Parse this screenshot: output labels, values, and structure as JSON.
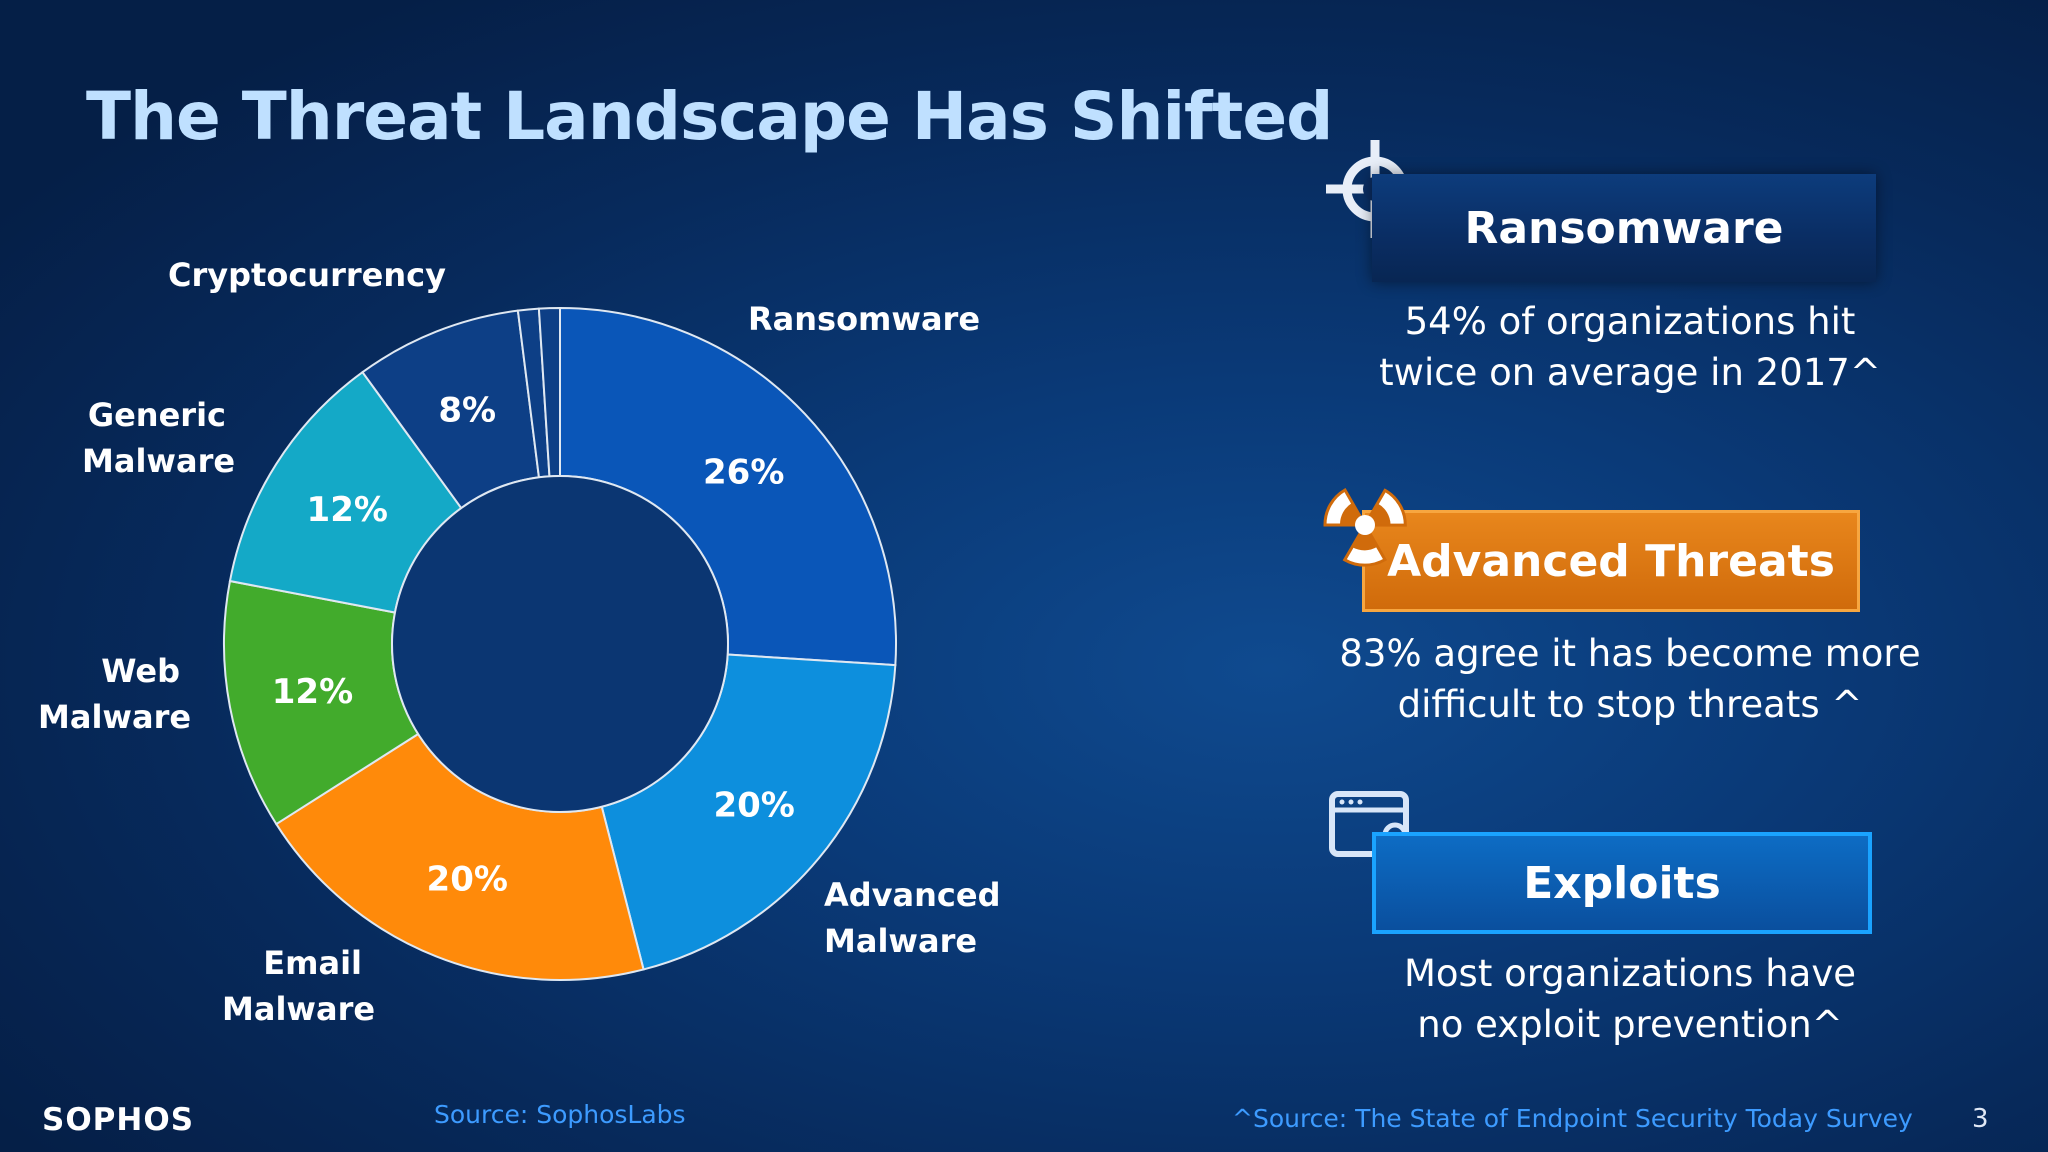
{
  "slide": {
    "title": "The Threat Landscape Has Shifted",
    "logo": "SOPHOS",
    "source_left": "Source: SophosLabs",
    "source_right": "^Source: The State of Endpoint Security Today Survey",
    "page_number": "3"
  },
  "chart_data": {
    "type": "pie",
    "variant": "donut",
    "title": "",
    "categories": [
      "Ransomware",
      "Advanced Malware",
      "Email Malware",
      "Web Malware",
      "Generic Malware",
      "Cryptocurrency",
      "",
      ""
    ],
    "values": [
      26,
      20,
      20,
      12,
      12,
      8,
      1,
      1
    ],
    "data_labels": [
      "26%",
      "20%",
      "20%",
      "12%",
      "12%",
      "8%",
      "",
      ""
    ],
    "colors": [
      "#0a56b8",
      "#0d8fdd",
      "#ff8a0a",
      "#42ab2c",
      "#14a9c7",
      "#0d3f86",
      "#0d3f86",
      "#0d3f86"
    ],
    "category_labels": {
      "ransomware": "Ransomware",
      "advanced_malware": "Advanced\nMalware",
      "email_malware": "Email\nMalware",
      "web_malware": "Web\nMalware",
      "generic_malware": "Generic\nMalware",
      "cryptocurrency": "Cryptocurrency"
    }
  },
  "panels": {
    "ransomware": {
      "banner": "Ransomware",
      "description": "54% of organizations hit\ntwice on average in 2017^",
      "icon": "crosshair-icon",
      "color": "#0a2d63"
    },
    "advanced_threats": {
      "banner": "Advanced Threats",
      "description": "83% agree it has become more\ndifficult to stop threats ^",
      "icon": "radiation-icon",
      "color": "#d87410"
    },
    "exploits": {
      "banner": "Exploits",
      "description": "Most organizations have\nno exploit prevention^",
      "icon": "browser-lock-icon",
      "color": "#0a5cb0"
    }
  }
}
